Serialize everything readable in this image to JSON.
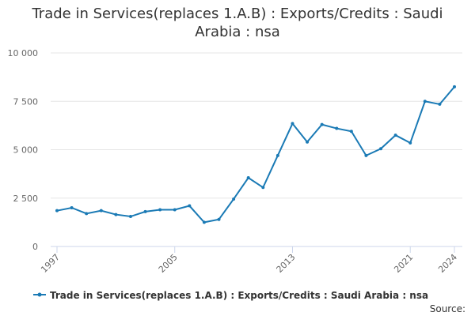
{
  "chart_data": {
    "type": "line",
    "title": "Trade in Services(replaces 1.A.B) : Exports/Credits : Saudi Arabia : nsa",
    "x": [
      1997,
      1998,
      1999,
      2000,
      2001,
      2002,
      2003,
      2004,
      2005,
      2006,
      2007,
      2008,
      2009,
      2010,
      2011,
      2012,
      2013,
      2014,
      2015,
      2016,
      2017,
      2018,
      2019,
      2020,
      2021,
      2022,
      2023,
      2024
    ],
    "series": [
      {
        "name": "Trade in Services(replaces 1.A.B) : Exports/Credits : Saudi Arabia : nsa",
        "color": "#1a7ab5",
        "values": [
          1850,
          2000,
          1700,
          1850,
          1650,
          1550,
          1800,
          1900,
          1900,
          2100,
          1250,
          1400,
          2450,
          3550,
          3050,
          4700,
          6350,
          5400,
          6300,
          6100,
          5950,
          4700,
          5050,
          5750,
          5350,
          7500,
          7350,
          8250
        ]
      }
    ],
    "xlim": [
      1997,
      2024
    ],
    "xticks": [
      1997,
      2005,
      2013,
      2021,
      2024
    ],
    "ylim": [
      0,
      10000
    ],
    "yticks": [
      0,
      {
        "value": 2500,
        "label": "2 500"
      },
      {
        "value": 5000,
        "label": "5 000"
      },
      {
        "value": 7500,
        "label": "7 500"
      },
      {
        "value": 10000,
        "label": "10 000"
      }
    ],
    "grid": true,
    "source": "Source:"
  }
}
